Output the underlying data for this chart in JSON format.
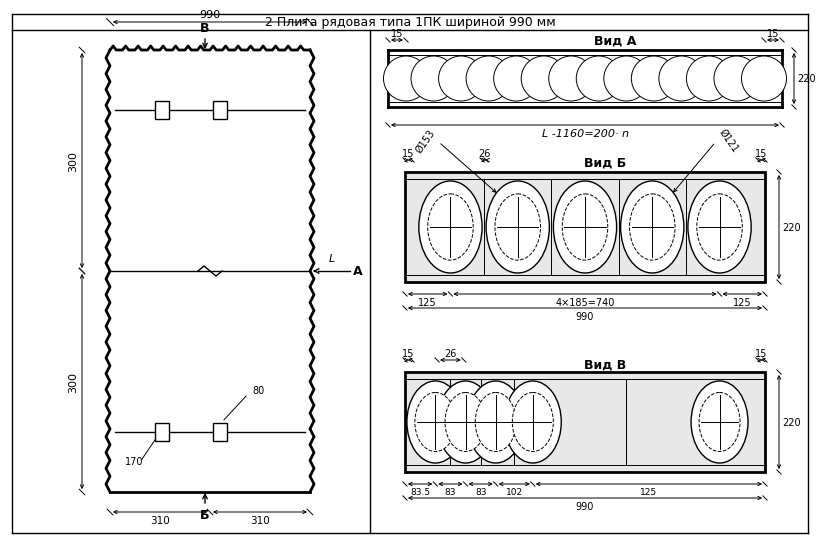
{
  "title": "2 Плита рядовая типа 1ПК шириной 990 мм",
  "background_color": "#ffffff",
  "line_color": "#000000",
  "views": {
    "vid_a_label": "Вид А",
    "vid_b_label": "Вид Б",
    "vid_v_label": "Вид В"
  },
  "left_view": {
    "label_B": "В",
    "label_B2": "Б",
    "label_A": "А",
    "dim_width": "990",
    "dim_top": "300",
    "dim_bottom": "300",
    "dim_310_left": "310",
    "dim_310_right": "310",
    "dim_80": "80",
    "dim_170": "170",
    "dim_L": "L"
  },
  "vid_a": {
    "circles": 14,
    "dim_left": "15",
    "dim_right": "15",
    "dim_length": "L -1160=200· n",
    "dim_height": "220"
  },
  "vid_b": {
    "dim_left": "15",
    "dim_right": "15",
    "dim_center": "26",
    "dim_4x185": "4×185=740",
    "dim_125_left": "125",
    "dim_125_right": "125",
    "dim_990": "990",
    "dim_height": "220",
    "phi_153": "Ø153",
    "phi_121": "Ø121",
    "circles": 5
  },
  "vid_v": {
    "dim_left": "15",
    "dim_right": "15",
    "dim_center": "26",
    "dim_83_5": "83.5",
    "dim_83_1": "83",
    "dim_83_2": "83",
    "dim_102": "102",
    "dim_125": "125",
    "dim_990": "990",
    "dim_height": "220",
    "circles": 5
  }
}
